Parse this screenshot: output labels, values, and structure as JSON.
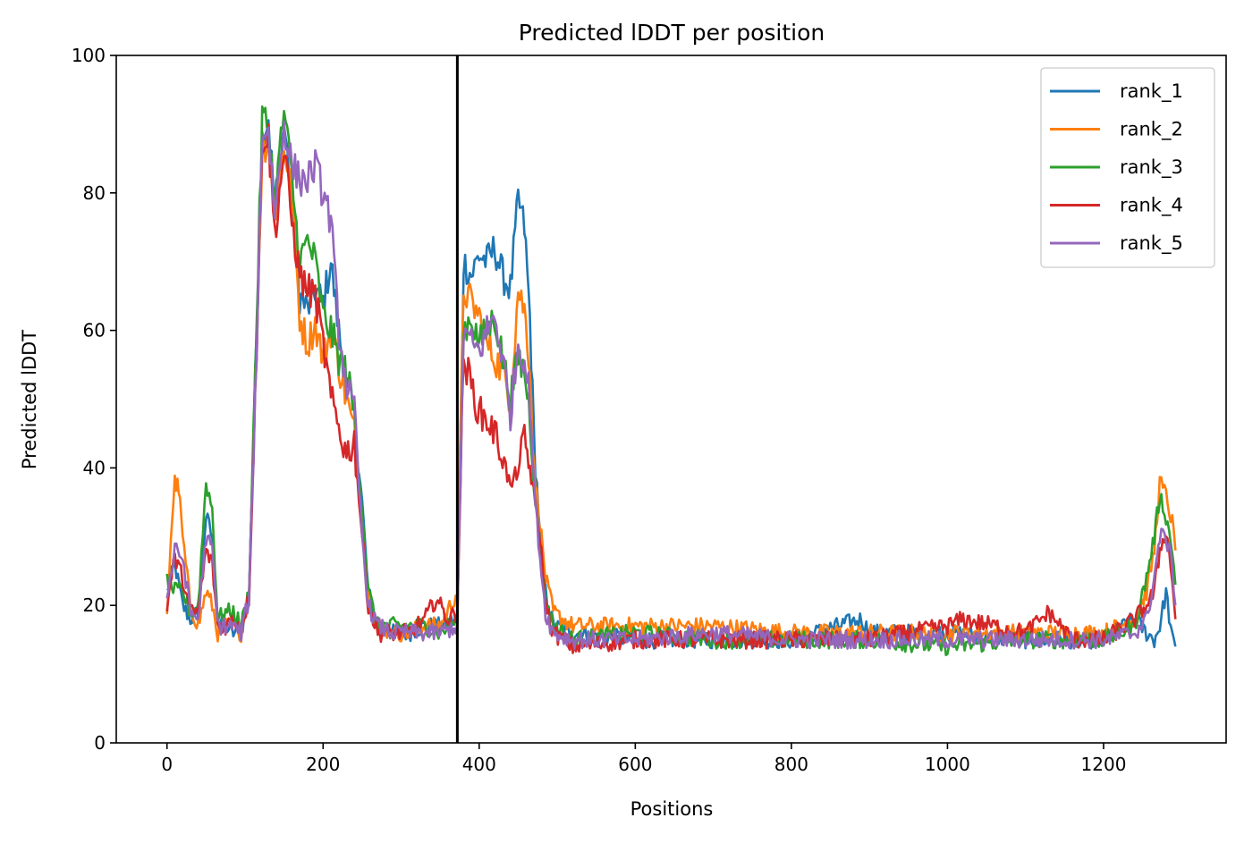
{
  "chart_data": {
    "type": "line",
    "title": "Predicted lDDT per position",
    "xlabel": "Positions",
    "ylabel": "Predicted lDDT",
    "xlim": [
      -65,
      1357
    ],
    "ylim": [
      0,
      100
    ],
    "xticks": [
      0,
      200,
      400,
      600,
      800,
      1000,
      1200
    ],
    "yticks": [
      0,
      20,
      40,
      60,
      80,
      100
    ],
    "xtick_labels": [
      "0",
      "200",
      "400",
      "600",
      "800",
      "1000",
      "1200"
    ],
    "ytick_labels": [
      "0",
      "20",
      "40",
      "60",
      "80",
      "100"
    ],
    "grid": false,
    "legend_position": "top-right",
    "vline_x": 372,
    "series": [
      {
        "name": "rank_1",
        "color": "#1f77b4",
        "points": [
          [
            0,
            22
          ],
          [
            10,
            26
          ],
          [
            20,
            20
          ],
          [
            30,
            18
          ],
          [
            40,
            19
          ],
          [
            50,
            33
          ],
          [
            58,
            30
          ],
          [
            65,
            18
          ],
          [
            75,
            17
          ],
          [
            85,
            16
          ],
          [
            95,
            16
          ],
          [
            105,
            22
          ],
          [
            115,
            60
          ],
          [
            122,
            88
          ],
          [
            130,
            91
          ],
          [
            138,
            78
          ],
          [
            150,
            90
          ],
          [
            160,
            80
          ],
          [
            170,
            65
          ],
          [
            180,
            63
          ],
          [
            190,
            66
          ],
          [
            200,
            64
          ],
          [
            210,
            70
          ],
          [
            220,
            60
          ],
          [
            230,
            52
          ],
          [
            240,
            47
          ],
          [
            250,
            35
          ],
          [
            258,
            22
          ],
          [
            270,
            17
          ],
          [
            290,
            16
          ],
          [
            310,
            16
          ],
          [
            330,
            17
          ],
          [
            350,
            17
          ],
          [
            372,
            18
          ],
          [
            380,
            70
          ],
          [
            390,
            68
          ],
          [
            400,
            71
          ],
          [
            410,
            70
          ],
          [
            420,
            72
          ],
          [
            430,
            68
          ],
          [
            440,
            66
          ],
          [
            450,
            79
          ],
          [
            458,
            75
          ],
          [
            465,
            62
          ],
          [
            470,
            45
          ],
          [
            478,
            30
          ],
          [
            485,
            22
          ],
          [
            495,
            17
          ],
          [
            520,
            16
          ],
          [
            600,
            15
          ],
          [
            700,
            15
          ],
          [
            800,
            15
          ],
          [
            890,
            18
          ],
          [
            900,
            16
          ],
          [
            1000,
            16
          ],
          [
            1100,
            15
          ],
          [
            1200,
            15
          ],
          [
            1240,
            18
          ],
          [
            1255,
            16
          ],
          [
            1265,
            15
          ],
          [
            1272,
            17
          ],
          [
            1280,
            22
          ],
          [
            1288,
            15
          ],
          [
            1292,
            14
          ]
        ]
      },
      {
        "name": "rank_2",
        "color": "#ff7f0e",
        "points": [
          [
            0,
            18
          ],
          [
            5,
            30
          ],
          [
            10,
            38
          ],
          [
            15,
            37
          ],
          [
            20,
            30
          ],
          [
            30,
            20
          ],
          [
            40,
            17
          ],
          [
            50,
            22
          ],
          [
            58,
            20
          ],
          [
            65,
            16
          ],
          [
            75,
            17
          ],
          [
            85,
            17
          ],
          [
            95,
            16
          ],
          [
            105,
            22
          ],
          [
            115,
            60
          ],
          [
            122,
            86
          ],
          [
            130,
            88
          ],
          [
            138,
            76
          ],
          [
            150,
            87
          ],
          [
            160,
            80
          ],
          [
            170,
            62
          ],
          [
            180,
            58
          ],
          [
            190,
            61
          ],
          [
            200,
            56
          ],
          [
            210,
            60
          ],
          [
            220,
            55
          ],
          [
            230,
            50
          ],
          [
            240,
            45
          ],
          [
            250,
            32
          ],
          [
            258,
            21
          ],
          [
            270,
            17
          ],
          [
            290,
            16
          ],
          [
            310,
            16
          ],
          [
            330,
            17
          ],
          [
            350,
            17
          ],
          [
            372,
            22
          ],
          [
            380,
            66
          ],
          [
            390,
            64
          ],
          [
            400,
            62
          ],
          [
            410,
            58
          ],
          [
            420,
            56
          ],
          [
            430,
            54
          ],
          [
            440,
            50
          ],
          [
            450,
            66
          ],
          [
            458,
            63
          ],
          [
            465,
            55
          ],
          [
            470,
            40
          ],
          [
            478,
            32
          ],
          [
            485,
            24
          ],
          [
            495,
            19
          ],
          [
            520,
            17
          ],
          [
            600,
            17
          ],
          [
            700,
            17
          ],
          [
            800,
            16
          ],
          [
            900,
            16
          ],
          [
            1000,
            16
          ],
          [
            1100,
            16
          ],
          [
            1200,
            16
          ],
          [
            1240,
            18
          ],
          [
            1255,
            22
          ],
          [
            1265,
            28
          ],
          [
            1272,
            38
          ],
          [
            1280,
            36
          ],
          [
            1288,
            32
          ],
          [
            1292,
            28
          ]
        ]
      },
      {
        "name": "rank_3",
        "color": "#2ca02c",
        "points": [
          [
            0,
            24
          ],
          [
            10,
            22
          ],
          [
            20,
            22
          ],
          [
            30,
            19
          ],
          [
            40,
            20
          ],
          [
            50,
            38
          ],
          [
            58,
            34
          ],
          [
            65,
            18
          ],
          [
            75,
            19
          ],
          [
            85,
            19
          ],
          [
            95,
            17
          ],
          [
            105,
            22
          ],
          [
            115,
            62
          ],
          [
            122,
            91
          ],
          [
            130,
            90
          ],
          [
            138,
            79
          ],
          [
            150,
            92
          ],
          [
            160,
            82
          ],
          [
            170,
            70
          ],
          [
            180,
            73
          ],
          [
            190,
            70
          ],
          [
            200,
            62
          ],
          [
            210,
            60
          ],
          [
            220,
            56
          ],
          [
            230,
            54
          ],
          [
            240,
            48
          ],
          [
            250,
            34
          ],
          [
            258,
            22
          ],
          [
            270,
            17
          ],
          [
            290,
            17
          ],
          [
            310,
            17
          ],
          [
            330,
            17
          ],
          [
            350,
            16
          ],
          [
            372,
            18
          ],
          [
            380,
            60
          ],
          [
            390,
            62
          ],
          [
            400,
            58
          ],
          [
            410,
            60
          ],
          [
            420,
            62
          ],
          [
            430,
            56
          ],
          [
            440,
            50
          ],
          [
            450,
            56
          ],
          [
            458,
            54
          ],
          [
            465,
            48
          ],
          [
            470,
            38
          ],
          [
            478,
            28
          ],
          [
            485,
            21
          ],
          [
            495,
            17
          ],
          [
            520,
            15
          ],
          [
            600,
            16
          ],
          [
            700,
            15
          ],
          [
            800,
            15
          ],
          [
            900,
            15
          ],
          [
            1000,
            14
          ],
          [
            1100,
            15
          ],
          [
            1200,
            15
          ],
          [
            1240,
            17
          ],
          [
            1255,
            24
          ],
          [
            1265,
            30
          ],
          [
            1272,
            36
          ],
          [
            1280,
            33
          ],
          [
            1288,
            28
          ],
          [
            1292,
            23
          ]
        ]
      },
      {
        "name": "rank_4",
        "color": "#d62728",
        "points": [
          [
            0,
            20
          ],
          [
            10,
            27
          ],
          [
            20,
            24
          ],
          [
            30,
            19
          ],
          [
            40,
            19
          ],
          [
            50,
            28
          ],
          [
            58,
            26
          ],
          [
            65,
            17
          ],
          [
            75,
            17
          ],
          [
            85,
            18
          ],
          [
            95,
            17
          ],
          [
            105,
            21
          ],
          [
            115,
            58
          ],
          [
            122,
            88
          ],
          [
            130,
            88
          ],
          [
            138,
            74
          ],
          [
            150,
            86
          ],
          [
            160,
            76
          ],
          [
            170,
            68
          ],
          [
            180,
            66
          ],
          [
            190,
            65
          ],
          [
            200,
            58
          ],
          [
            210,
            50
          ],
          [
            220,
            46
          ],
          [
            230,
            42
          ],
          [
            240,
            44
          ],
          [
            250,
            30
          ],
          [
            258,
            20
          ],
          [
            270,
            16
          ],
          [
            290,
            16
          ],
          [
            310,
            16
          ],
          [
            330,
            18
          ],
          [
            345,
            21
          ],
          [
            360,
            18
          ],
          [
            372,
            19
          ],
          [
            380,
            56
          ],
          [
            390,
            52
          ],
          [
            400,
            48
          ],
          [
            410,
            47
          ],
          [
            420,
            45
          ],
          [
            430,
            42
          ],
          [
            440,
            37
          ],
          [
            450,
            40
          ],
          [
            458,
            44
          ],
          [
            465,
            40
          ],
          [
            470,
            36
          ],
          [
            478,
            30
          ],
          [
            485,
            20
          ],
          [
            495,
            16
          ],
          [
            520,
            14
          ],
          [
            600,
            15
          ],
          [
            700,
            15
          ],
          [
            800,
            15
          ],
          [
            900,
            15
          ],
          [
            1000,
            17
          ],
          [
            1020,
            18
          ],
          [
            1100,
            16
          ],
          [
            1130,
            19
          ],
          [
            1160,
            15
          ],
          [
            1200,
            15
          ],
          [
            1240,
            18
          ],
          [
            1255,
            20
          ],
          [
            1265,
            22
          ],
          [
            1272,
            28
          ],
          [
            1280,
            31
          ],
          [
            1288,
            24
          ],
          [
            1292,
            18
          ]
        ]
      },
      {
        "name": "rank_5",
        "color": "#9467bd",
        "points": [
          [
            0,
            21
          ],
          [
            10,
            28
          ],
          [
            20,
            27
          ],
          [
            30,
            19
          ],
          [
            40,
            18
          ],
          [
            50,
            30
          ],
          [
            58,
            28
          ],
          [
            65,
            17
          ],
          [
            75,
            17
          ],
          [
            85,
            17
          ],
          [
            95,
            16
          ],
          [
            105,
            21
          ],
          [
            115,
            58
          ],
          [
            122,
            89
          ],
          [
            130,
            89
          ],
          [
            138,
            77
          ],
          [
            150,
            90
          ],
          [
            160,
            84
          ],
          [
            170,
            82
          ],
          [
            180,
            82
          ],
          [
            190,
            84
          ],
          [
            200,
            80
          ],
          [
            210,
            76
          ],
          [
            220,
            60
          ],
          [
            230,
            52
          ],
          [
            240,
            48
          ],
          [
            250,
            30
          ],
          [
            258,
            20
          ],
          [
            270,
            17
          ],
          [
            290,
            16
          ],
          [
            310,
            16
          ],
          [
            330,
            16
          ],
          [
            350,
            16
          ],
          [
            372,
            17
          ],
          [
            380,
            60
          ],
          [
            390,
            58
          ],
          [
            400,
            57
          ],
          [
            410,
            60
          ],
          [
            420,
            62
          ],
          [
            430,
            56
          ],
          [
            440,
            48
          ],
          [
            450,
            58
          ],
          [
            458,
            56
          ],
          [
            465,
            50
          ],
          [
            470,
            38
          ],
          [
            478,
            27
          ],
          [
            485,
            19
          ],
          [
            495,
            16
          ],
          [
            520,
            15
          ],
          [
            600,
            15
          ],
          [
            700,
            16
          ],
          [
            800,
            15
          ],
          [
            900,
            15
          ],
          [
            1000,
            15
          ],
          [
            1100,
            15
          ],
          [
            1200,
            15
          ],
          [
            1240,
            16
          ],
          [
            1255,
            18
          ],
          [
            1265,
            24
          ],
          [
            1272,
            30
          ],
          [
            1280,
            30
          ],
          [
            1288,
            26
          ],
          [
            1292,
            20
          ]
        ]
      }
    ]
  }
}
